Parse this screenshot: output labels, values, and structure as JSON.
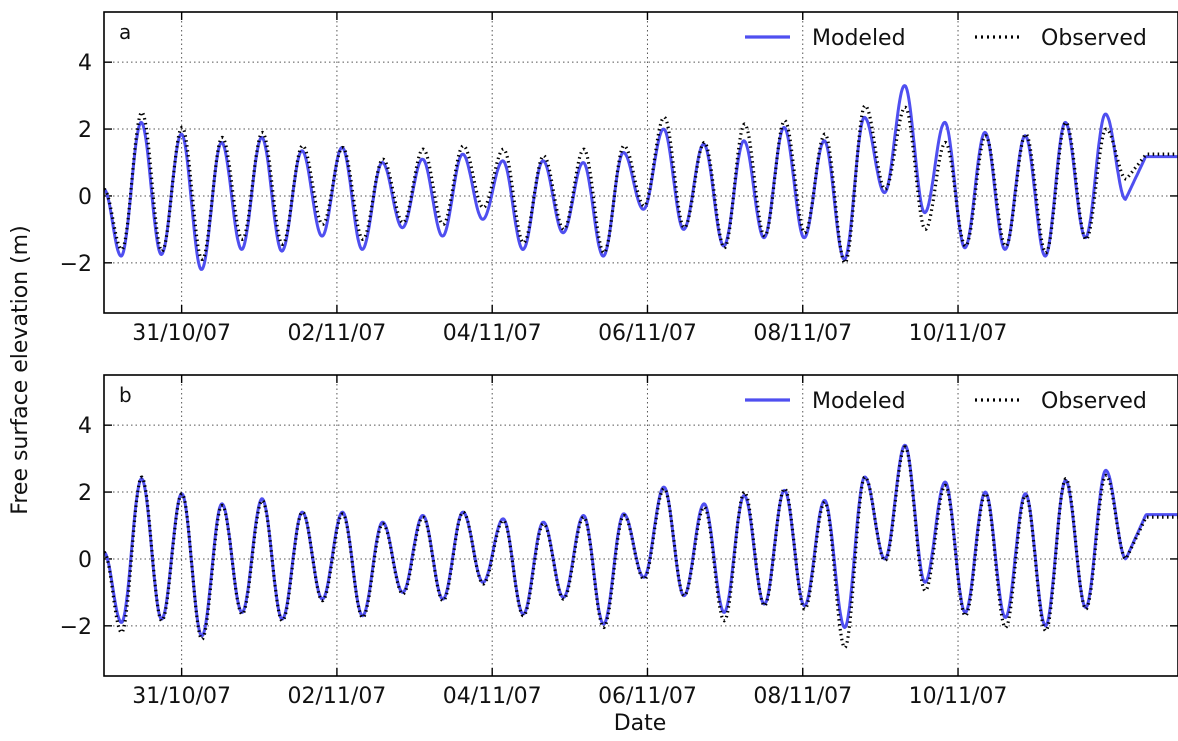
{
  "figure": {
    "ylabel": "Free surface elevation (m)",
    "xlabel": "Date"
  },
  "colors": {
    "modeled": "#4f4ff0",
    "observed": "#000000"
  },
  "chart_data": [
    {
      "type": "line",
      "panel_label": "a",
      "ylabel": "Free surface elevation (m)",
      "xlabel": "",
      "xlim": [
        "2007-10-30T00:00",
        "2007-11-12T20:00"
      ],
      "ylim": [
        -3.5,
        5.5
      ],
      "yticks": [
        -2,
        0,
        2,
        4
      ],
      "xticks": [
        {
          "value": "2007-10-31T00:00",
          "label": "31/10/07"
        },
        {
          "value": "2007-11-02T00:00",
          "label": "02/11/07"
        },
        {
          "value": "2007-11-04T00:00",
          "label": "04/11/07"
        },
        {
          "value": "2007-11-06T00:00",
          "label": "06/11/07"
        },
        {
          "value": "2007-11-08T00:00",
          "label": "08/11/07"
        },
        {
          "value": "2007-11-10T00:00",
          "label": "10/11/07"
        }
      ],
      "grid": true,
      "legend_position": "top-right",
      "series": [
        {
          "name": "Modeled",
          "style": "solid",
          "color": "#4f4ff0",
          "start": "2007-10-30T00:00",
          "tidal_period_hours": 12.42,
          "phase_hours": 5.3,
          "highs": [
            2.2,
            1.85,
            1.6,
            1.75,
            1.35,
            1.45,
            1.0,
            1.1,
            1.25,
            1.05,
            1.05,
            1.0,
            1.3,
            2.0,
            1.55,
            1.65,
            2.05,
            1.65,
            2.35,
            3.3,
            2.2,
            1.9,
            1.8,
            2.2,
            2.45
          ],
          "lows": [
            -1.8,
            -1.75,
            -2.2,
            -1.6,
            -1.65,
            -1.2,
            -1.6,
            -0.95,
            -1.2,
            -0.7,
            -1.6,
            -1.1,
            -1.8,
            -0.4,
            -1.0,
            -1.5,
            -1.25,
            -1.25,
            -1.9,
            0.1,
            -0.5,
            -1.55,
            -1.6,
            -1.8,
            -1.25,
            -0.1
          ]
        },
        {
          "name": "Observed",
          "style": "dotted",
          "color": "#000000",
          "start": "2007-10-30T00:00",
          "tidal_period_hours": 12.42,
          "phase_hours": 5.5,
          "highs": [
            2.5,
            2.05,
            1.75,
            1.9,
            1.5,
            1.45,
            1.1,
            1.4,
            1.5,
            1.4,
            1.2,
            1.4,
            1.5,
            2.35,
            1.6,
            2.15,
            2.25,
            1.85,
            2.7,
            2.65,
            1.6,
            1.8,
            1.85,
            2.2,
            2.0
          ],
          "lows": [
            -1.6,
            -1.65,
            -1.9,
            -1.3,
            -1.45,
            -0.85,
            -1.3,
            -0.8,
            -0.85,
            -0.35,
            -1.4,
            -1.0,
            -1.7,
            -0.3,
            -0.95,
            -1.55,
            -1.2,
            -1.1,
            -2.0,
            0.2,
            -1.0,
            -1.5,
            -1.5,
            -1.7,
            -1.3,
            0.5
          ]
        }
      ]
    },
    {
      "type": "line",
      "panel_label": "b",
      "ylabel": "Free surface elevation (m)",
      "xlabel": "Date",
      "xlim": [
        "2007-10-30T00:00",
        "2007-11-12T20:00"
      ],
      "ylim": [
        -3.5,
        5.5
      ],
      "yticks": [
        -2,
        0,
        2,
        4
      ],
      "xticks": [
        {
          "value": "2007-10-31T00:00",
          "label": "31/10/07"
        },
        {
          "value": "2007-11-02T00:00",
          "label": "02/11/07"
        },
        {
          "value": "2007-11-04T00:00",
          "label": "04/11/07"
        },
        {
          "value": "2007-11-06T00:00",
          "label": "06/11/07"
        },
        {
          "value": "2007-11-08T00:00",
          "label": "08/11/07"
        },
        {
          "value": "2007-11-10T00:00",
          "label": "10/11/07"
        }
      ],
      "grid": true,
      "legend_position": "top-right",
      "series": [
        {
          "name": "Modeled",
          "style": "solid",
          "color": "#4f4ff0",
          "start": "2007-10-30T00:00",
          "tidal_period_hours": 12.42,
          "phase_hours": 5.4,
          "highs": [
            2.4,
            1.95,
            1.65,
            1.8,
            1.4,
            1.4,
            1.1,
            1.3,
            1.4,
            1.2,
            1.1,
            1.3,
            1.35,
            2.15,
            1.65,
            1.9,
            2.05,
            1.75,
            2.45,
            3.4,
            2.3,
            2.0,
            1.95,
            2.35,
            2.65
          ],
          "lows": [
            -1.9,
            -1.8,
            -2.3,
            -1.6,
            -1.8,
            -1.2,
            -1.7,
            -1.0,
            -1.2,
            -0.7,
            -1.65,
            -1.15,
            -1.95,
            -0.55,
            -1.1,
            -1.6,
            -1.35,
            -1.4,
            -2.05,
            0.0,
            -0.7,
            -1.6,
            -1.75,
            -2.0,
            -1.45,
            0.0
          ]
        },
        {
          "name": "Observed",
          "style": "dotted",
          "color": "#000000",
          "start": "2007-10-30T00:00",
          "tidal_period_hours": 12.42,
          "phase_hours": 5.45,
          "highs": [
            2.45,
            1.95,
            1.6,
            1.75,
            1.4,
            1.35,
            1.05,
            1.25,
            1.4,
            1.15,
            1.05,
            1.25,
            1.3,
            2.1,
            1.55,
            2.0,
            2.1,
            1.7,
            2.45,
            3.35,
            2.2,
            1.95,
            1.9,
            2.4,
            2.5
          ],
          "lows": [
            -2.2,
            -1.85,
            -2.4,
            -1.65,
            -1.85,
            -1.25,
            -1.75,
            -1.05,
            -1.25,
            -0.75,
            -1.7,
            -1.2,
            -2.05,
            -0.6,
            -1.1,
            -1.85,
            -1.4,
            -1.5,
            -2.65,
            -0.05,
            -0.95,
            -1.7,
            -2.05,
            -2.15,
            -1.5,
            0.0
          ]
        }
      ]
    }
  ]
}
